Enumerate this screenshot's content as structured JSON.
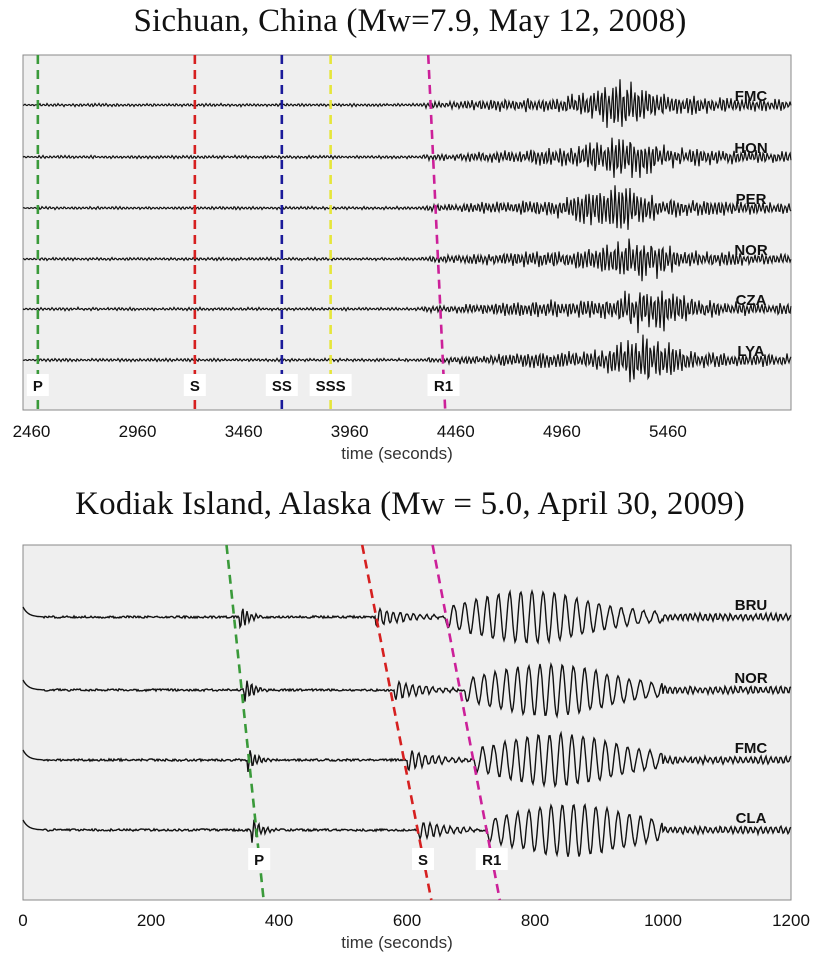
{
  "chart_data": [
    {
      "type": "line",
      "title": "Sichuan, China (Mw=7.9, May 12, 2008)",
      "xlabel": "time (seconds)",
      "xlim": [
        2420,
        6040
      ],
      "xticks": [
        2460,
        2960,
        3460,
        3960,
        4460,
        4960,
        5460
      ],
      "stations": [
        "FMC",
        "HON",
        "PER",
        "NOR",
        "CZA",
        "LYA"
      ],
      "series": [
        {
          "name": "FMC",
          "peak_time": 5250,
          "peak_amp": 1.0
        },
        {
          "name": "HON",
          "peak_time": 5250,
          "peak_amp": 1.0
        },
        {
          "name": "PER",
          "peak_time": 5200,
          "peak_amp": 1.0
        },
        {
          "name": "NOR",
          "peak_time": 5300,
          "peak_amp": 1.0
        },
        {
          "name": "CZA",
          "peak_time": 5380,
          "peak_amp": 1.0
        },
        {
          "name": "LYA",
          "peak_time": 5350,
          "peak_amp": 1.0
        }
      ],
      "phases": [
        {
          "label": "P",
          "color": "#3a9a3a",
          "time_first": 2490,
          "time_last": 2490
        },
        {
          "label": "S",
          "color": "#d62020",
          "time_first": 3230,
          "time_last": 3230
        },
        {
          "label": "SS",
          "color": "#1a1a9a",
          "time_first": 3640,
          "time_last": 3640
        },
        {
          "label": "SSS",
          "color": "#e6e63a",
          "time_first": 3870,
          "time_last": 3870
        },
        {
          "label": "R1",
          "color": "#cc2099",
          "time_first": 4330,
          "time_last": 4410
        }
      ],
      "grid": false
    },
    {
      "type": "line",
      "title": "Kodiak Island, Alaska (Mw = 5.0, April 30, 2009)",
      "xlabel": "time (seconds)",
      "xlim": [
        0,
        1200
      ],
      "xticks": [
        0,
        200,
        400,
        600,
        800,
        1000,
        1200
      ],
      "stations": [
        "BRU",
        "NOR",
        "FMC",
        "CLA"
      ],
      "series": [
        {
          "name": "BRU",
          "p_time": 338,
          "s_time": 550,
          "r_time": 660
        },
        {
          "name": "NOR",
          "p_time": 345,
          "s_time": 580,
          "r_time": 690
        },
        {
          "name": "FMC",
          "p_time": 350,
          "s_time": 600,
          "r_time": 705
        },
        {
          "name": "CLA",
          "p_time": 356,
          "s_time": 618,
          "r_time": 725
        }
      ],
      "phases": [
        {
          "label": "P",
          "color": "#3a9a3a",
          "time_first": 338,
          "time_last": 356
        },
        {
          "label": "S",
          "color": "#d62020",
          "time_first": 550,
          "time_last": 618
        },
        {
          "label": "R1",
          "color": "#cc2099",
          "time_first": 660,
          "time_last": 725
        }
      ],
      "grid": false
    }
  ]
}
